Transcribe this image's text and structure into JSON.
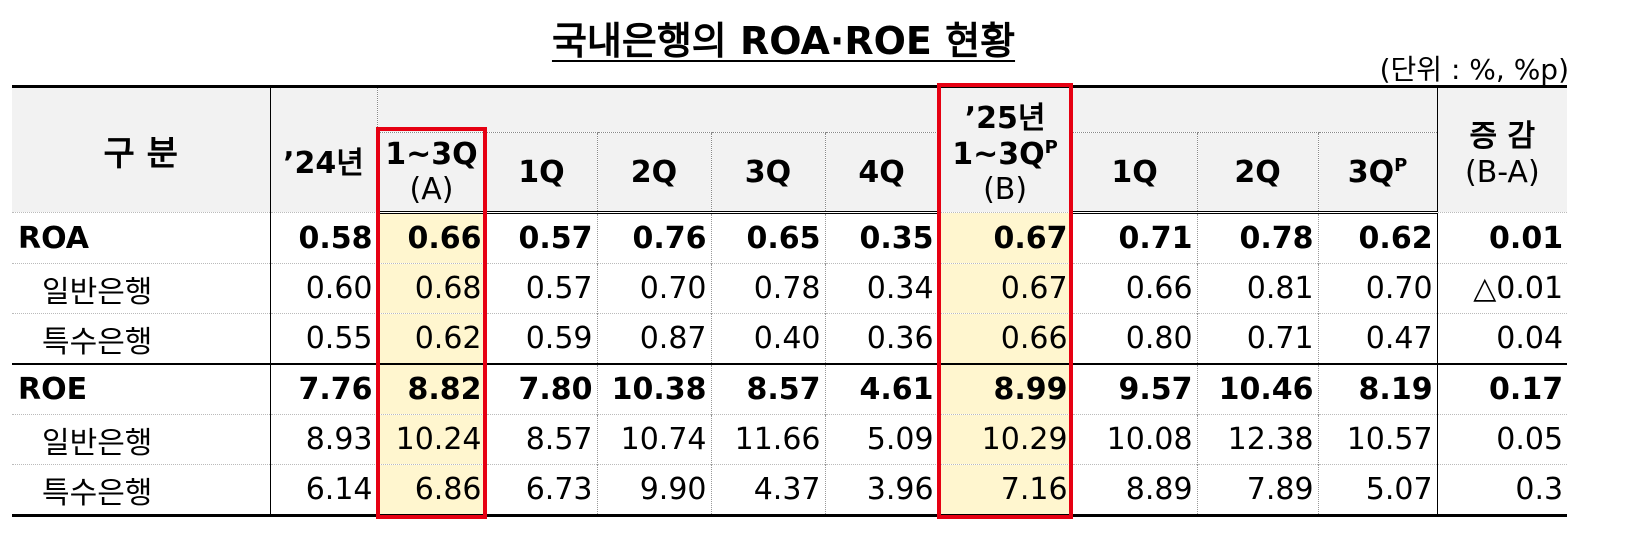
{
  "title": "국내은행의 ROA·ROE 현황",
  "unit": "(단위 : %, %p)",
  "table": {
    "header": {
      "category": "구 분",
      "y2024": "’24년",
      "a": [
        "1~3Q",
        "(A)"
      ],
      "q2024": [
        "1Q",
        "2Q",
        "3Q",
        "4Q"
      ],
      "b": [
        "’25년",
        "1~3Q",
        "P",
        "(B)"
      ],
      "q2025": [
        "1Q",
        "2Q",
        "3Q"
      ],
      "q2025_sup": "P",
      "change": [
        "증 감",
        "(B-A)"
      ]
    },
    "rows": [
      {
        "label": "ROA",
        "values": [
          "0.58",
          "0.66",
          "0.57",
          "0.76",
          "0.65",
          "0.35",
          "0.67",
          "0.71",
          "0.78",
          "0.62",
          "0.01"
        ]
      },
      {
        "label": "일반은행",
        "values": [
          "0.60",
          "0.68",
          "0.57",
          "0.70",
          "0.78",
          "0.34",
          "0.67",
          "0.66",
          "0.81",
          "0.70",
          "△0.01"
        ]
      },
      {
        "label": "특수은행",
        "values": [
          "0.55",
          "0.62",
          "0.59",
          "0.87",
          "0.40",
          "0.36",
          "0.66",
          "0.80",
          "0.71",
          "0.47",
          "0.04"
        ]
      },
      {
        "label": "ROE",
        "values": [
          "7.76",
          "8.82",
          "7.80",
          "10.38",
          "8.57",
          "4.61",
          "8.99",
          "9.57",
          "10.46",
          "8.19",
          "0.17"
        ]
      },
      {
        "label": "일반은행",
        "values": [
          "8.93",
          "10.24",
          "8.57",
          "10.74",
          "11.66",
          "5.09",
          "10.29",
          "10.08",
          "12.38",
          "10.57",
          "0.05"
        ]
      },
      {
        "label": "특수은행",
        "values": [
          "6.14",
          "6.86",
          "6.73",
          "9.90",
          "4.37",
          "3.96",
          "7.16",
          "8.89",
          "7.89",
          "5.07",
          "0.3"
        ]
      }
    ]
  }
}
